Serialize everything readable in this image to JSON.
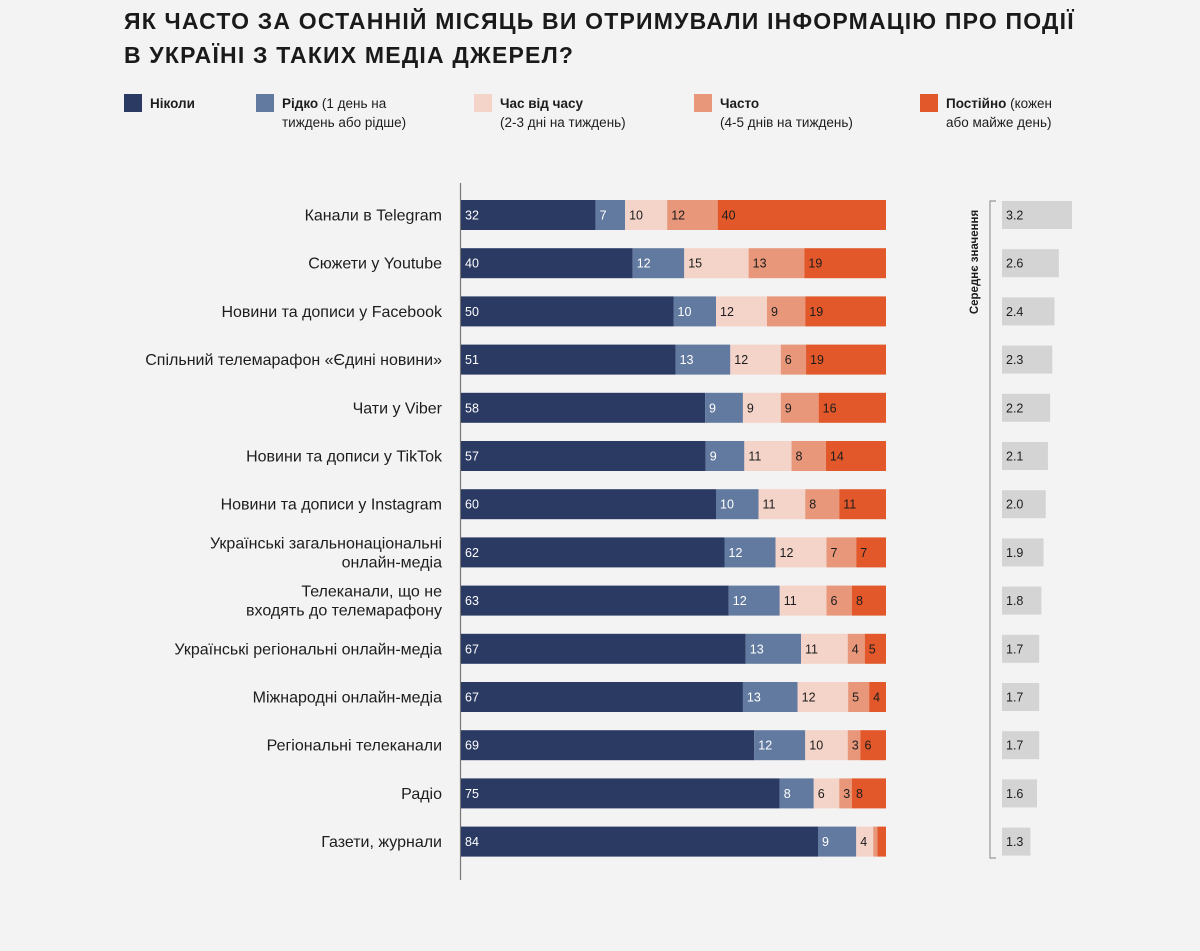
{
  "title_line1": "ЯК ЧАСТО ЗА ОСТАННІЙ МІСЯЦЬ ВИ ОТРИМУВАЛИ ІНФОРМАЦІЮ ПРО ПОДІЇ",
  "title_line2": "В УКРАЇНІ З ТАКИХ МЕДІА ДЖЕРЕЛ?",
  "legend": [
    {
      "label": "Ніколи",
      "sub": "",
      "color": "#2b3a63"
    },
    {
      "label": "Рідко",
      "label_rest": " (1 день на",
      "sub": "тиждень або рідше)",
      "color": "#637aa0"
    },
    {
      "label": "Час від часу",
      "sub": "(2-3 дні на тиждень)",
      "color": "#f4d3c8"
    },
    {
      "label": "Часто",
      "sub": "(4-5 днів на тиждень)",
      "color": "#e8977a"
    },
    {
      "label": "Постійно",
      "label_rest": " (кожен",
      "sub": "або майже день)",
      "color": "#e2582a"
    }
  ],
  "chart_data": {
    "type": "bar",
    "orientation": "horizontal",
    "stacked": true,
    "categories": [
      "Канали в Telegram",
      "Сюжети у Youtube",
      "Новини та дописи у Facebook",
      "Спільний телемарафон «Єдині новини»",
      "Чати у Viber",
      "Новини та дописи у TikTok",
      "Новини та дописи у Instagram",
      "Українські загальнонаціональні онлайн-медіа",
      "Телеканали, що не входять до телемарафону",
      "Українські регіональні онлайн-медіа",
      "Міжнародні онлайн-медіа",
      "Регіональні телеканали",
      "Радіо",
      "Газети, журнали"
    ],
    "series": [
      {
        "name": "Ніколи",
        "color": "#2b3a63",
        "values": [
          32,
          40,
          50,
          51,
          58,
          57,
          60,
          62,
          63,
          67,
          67,
          69,
          75,
          84
        ]
      },
      {
        "name": "Рідко (1 день на тиждень або рідше)",
        "color": "#637aa0",
        "values": [
          7,
          12,
          10,
          13,
          9,
          9,
          10,
          12,
          12,
          13,
          13,
          12,
          8,
          9
        ]
      },
      {
        "name": "Час від часу (2-3 дні на тиждень)",
        "color": "#f4d3c8",
        "values": [
          10,
          15,
          12,
          12,
          9,
          11,
          11,
          12,
          11,
          11,
          12,
          10,
          6,
          4
        ]
      },
      {
        "name": "Часто (4-5 днів на тиждень)",
        "color": "#e8977a",
        "values": [
          12,
          13,
          9,
          6,
          9,
          8,
          8,
          7,
          6,
          4,
          5,
          3,
          3,
          1
        ]
      },
      {
        "name": "Постійно (кожен або майже день)",
        "color": "#e2582a",
        "values": [
          40,
          19,
          19,
          19,
          16,
          14,
          11,
          7,
          8,
          5,
          4,
          6,
          8,
          2
        ]
      }
    ],
    "hidden_labels": [
      [
        13,
        3
      ],
      [
        13,
        4
      ]
    ],
    "mean": {
      "label": "Середнє значення",
      "values": [
        3.2,
        2.6,
        2.4,
        2.3,
        2.2,
        2.1,
        2.0,
        1.9,
        1.8,
        1.7,
        1.7,
        1.7,
        1.6,
        1.3
      ],
      "display": [
        "3.2",
        "2.6",
        "2.4",
        "2.3",
        "2.2",
        "2.1",
        "2.0",
        "1.9",
        "1.8",
        "1.7",
        "1.7",
        "1.7",
        "1.6",
        "1.3"
      ]
    },
    "xlim": [
      0,
      100
    ]
  }
}
